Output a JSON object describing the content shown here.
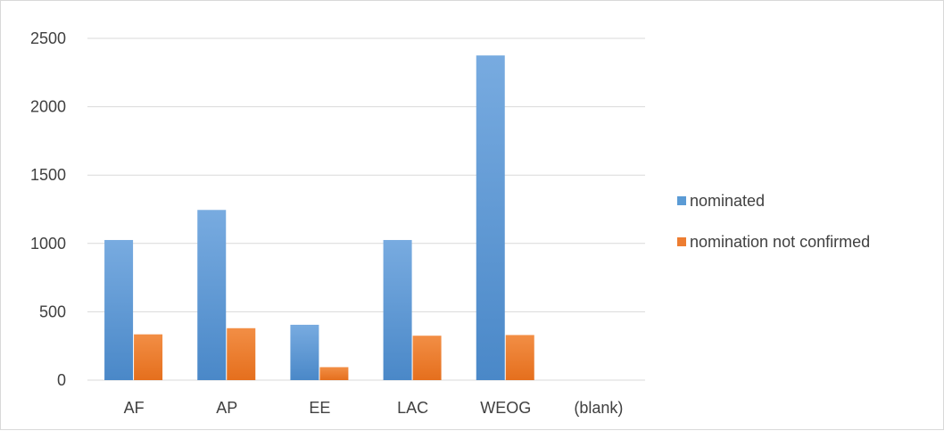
{
  "chart_data": {
    "type": "bar",
    "categories": [
      "AF",
      "AP",
      "EE",
      "LAC",
      "WEOG",
      "(blank)"
    ],
    "series": [
      {
        "name": "nominated",
        "values": [
          1025,
          1245,
          405,
          1025,
          2375,
          0
        ]
      },
      {
        "name": "nomination not confirmed",
        "values": [
          335,
          380,
          95,
          325,
          330,
          0
        ]
      }
    ],
    "ylim": [
      0,
      2500
    ],
    "yticks": [
      0,
      500,
      1000,
      1500,
      2000,
      2500
    ],
    "grid": true,
    "legend_position": "right",
    "colors": {
      "nominated": "#5b9bd5",
      "nomination not confirmed": "#ed7d31",
      "grid": "#d9d9d9",
      "text": "#404040"
    }
  }
}
